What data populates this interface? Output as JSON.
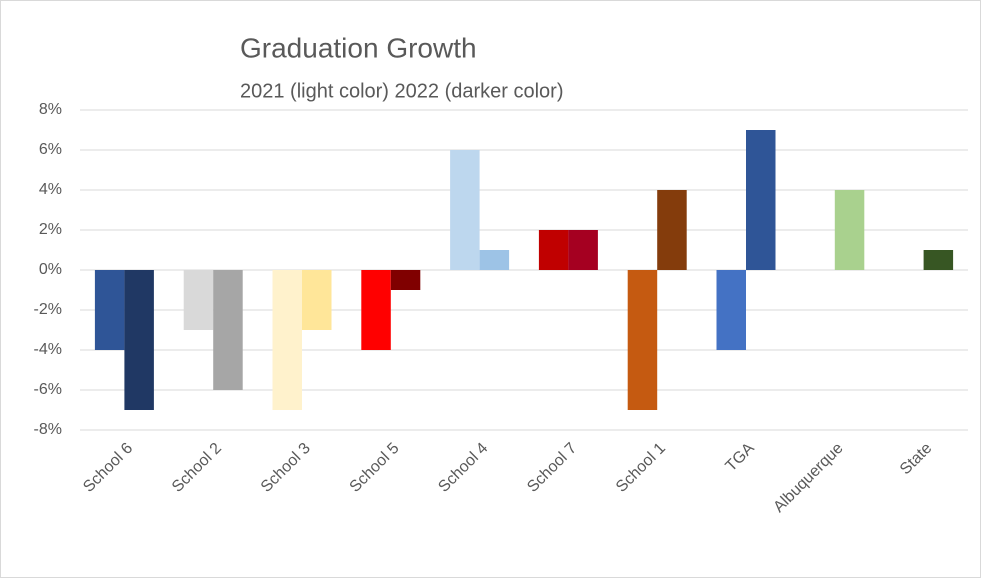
{
  "chart_data": {
    "type": "bar",
    "title": "Graduation Growth",
    "subtitle": "2021 (light color) 2022 (darker color)",
    "categories": [
      "School 6",
      "School 2",
      "School 3",
      "School 5",
      "School 4",
      "School 7",
      "School 1",
      "TGA",
      "Albuquerque",
      "State"
    ],
    "series": [
      {
        "values": [
          -4,
          -3,
          -7,
          -4,
          6,
          2,
          -7,
          -4,
          null,
          null
        ],
        "colors": [
          "#2f5597",
          "#d9d9d9",
          "#fff2cc",
          "#ff0000",
          "#bdd7ee",
          "#c00000",
          "#c55a11",
          "#4472c4",
          null,
          null
        ]
      },
      {
        "values": [
          -7,
          -6,
          -3,
          -1,
          1,
          2,
          4,
          7,
          4,
          1
        ],
        "colors": [
          "#203864",
          "#a6a6a6",
          "#ffe699",
          "#800000",
          "#9dc3e6",
          "#a50021",
          "#843c0c",
          "#2f5597",
          "#a9d18e",
          "#375623"
        ]
      }
    ],
    "ylim": [
      -8,
      8
    ],
    "yticks": [
      {
        "value": -8,
        "label": "-8%"
      },
      {
        "value": -6,
        "label": "-6%"
      },
      {
        "value": -4,
        "label": "-4%"
      },
      {
        "value": -2,
        "label": "-2%"
      },
      {
        "value": 0,
        "label": "0%"
      },
      {
        "value": 2,
        "label": "2%"
      },
      {
        "value": 4,
        "label": "4%"
      },
      {
        "value": 6,
        "label": "6%"
      },
      {
        "value": 8,
        "label": "8%"
      }
    ],
    "grid": true
  }
}
